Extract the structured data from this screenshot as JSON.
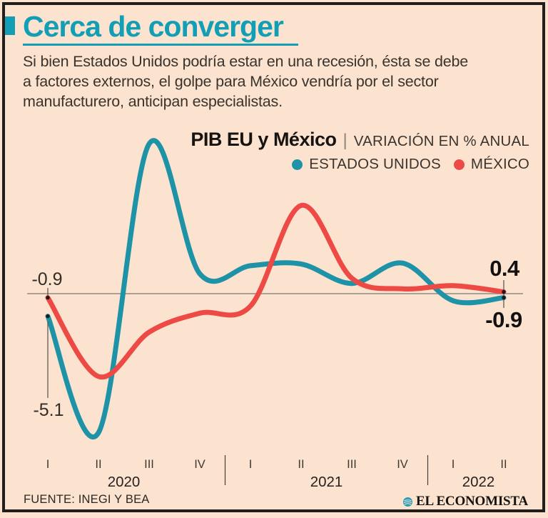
{
  "card": {
    "title": "Cerca de converger",
    "subtitle": "Si bien Estados Unidos podría estar en una recesión, ésta se debe a factores externos, el golpe para México vendría por el sector manufacturero, anticipan especialistas.",
    "source": "FUENTE: INEGI Y BEA",
    "brand": "EL ECONOMISTA"
  },
  "chart_header": {
    "title": "PIB EU y México",
    "separator": "|",
    "subtitle": "VARIACIÓN EN % ANUAL",
    "legend": [
      {
        "label": "ESTADOS UNIDOS",
        "color": "#1e93a8"
      },
      {
        "label": "MÉXICO",
        "color": "#ee4a45"
      }
    ]
  },
  "chart_data": {
    "type": "line",
    "title": "PIB EU y México",
    "units_note": "VARIACIÓN EN % ANUAL",
    "categories": [
      "I",
      "II",
      "III",
      "IV",
      "I",
      "II",
      "III",
      "IV",
      "I",
      "II"
    ],
    "year_groups": [
      {
        "label": "2020",
        "span": [
          0,
          3
        ]
      },
      {
        "label": "2021",
        "span": [
          4,
          7
        ]
      },
      {
        "label": "2022",
        "span": [
          8,
          9
        ]
      }
    ],
    "series": [
      {
        "name": "ESTADOS UNIDOS",
        "color": "#1e93a8",
        "values": [
          -5.1,
          -31.4,
          33.8,
          4.5,
          6.3,
          6.7,
          2.3,
          6.9,
          -1.6,
          -0.9
        ]
      },
      {
        "name": "MÉXICO",
        "color": "#ee4a45",
        "values": [
          -0.9,
          -18.7,
          -8.7,
          -4.4,
          -2.8,
          19.9,
          3.5,
          1.1,
          1.8,
          0.4
        ]
      }
    ],
    "point_labels": [
      {
        "series_index": 1,
        "point_index": 0,
        "text": "-0.9",
        "bold": false,
        "placement": "left-above"
      },
      {
        "series_index": 0,
        "point_index": 0,
        "text": "-5.1",
        "bold": false,
        "placement": "left-far-below"
      },
      {
        "series_index": 1,
        "point_index": 9,
        "text": "0.4",
        "bold": true,
        "placement": "right-above"
      },
      {
        "series_index": 0,
        "point_index": 9,
        "text": "-0.9",
        "bold": true,
        "placement": "right-below"
      }
    ],
    "baseline": 0,
    "ylim": [
      -33,
      36
    ],
    "grid": false,
    "legend_position": "top-right"
  },
  "colors": {
    "background": "#fbe3cf",
    "border": "#211e1b",
    "teal": "#1e93a8",
    "teal_bright": "#129fb6",
    "red": "#ee4a45",
    "zero_line": "#8f8a82",
    "text_dark": "#161310",
    "text_warm": "#3b342e"
  }
}
